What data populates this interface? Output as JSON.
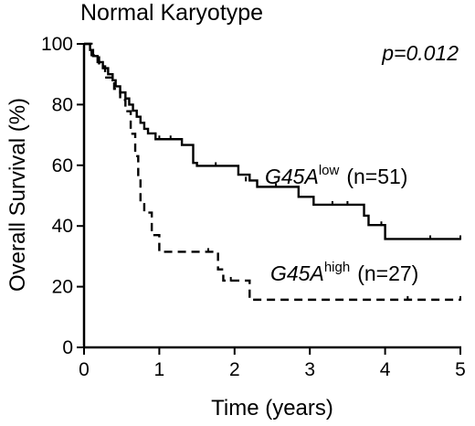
{
  "chart_data": {
    "type": "line",
    "title": "Normal Karyotype",
    "xlabel": "Time (years)",
    "ylabel": "Overall Survival (%)",
    "xlim": [
      0,
      5
    ],
    "ylim": [
      0,
      100
    ],
    "x_ticks": [
      "0",
      "1",
      "2",
      "3",
      "4",
      "5"
    ],
    "y_ticks": [
      "0",
      "20",
      "40",
      "60",
      "80",
      "100"
    ],
    "grid": false,
    "annotation": "p=0.012",
    "series": [
      {
        "gene": "G45A",
        "superscript": "low",
        "n_text": "(n=51)",
        "style": "solid",
        "color": "#000000",
        "points": [
          [
            0,
            100
          ],
          [
            0.08,
            98
          ],
          [
            0.12,
            96
          ],
          [
            0.18,
            94
          ],
          [
            0.25,
            92
          ],
          [
            0.32,
            90
          ],
          [
            0.38,
            88
          ],
          [
            0.42,
            86
          ],
          [
            0.48,
            84
          ],
          [
            0.55,
            82
          ],
          [
            0.6,
            80
          ],
          [
            0.65,
            78
          ],
          [
            0.7,
            76
          ],
          [
            0.75,
            74
          ],
          [
            0.8,
            72
          ],
          [
            0.85,
            70.5
          ],
          [
            0.95,
            68.6
          ],
          [
            1.2,
            68.6
          ],
          [
            1.3,
            66.7
          ],
          [
            1.45,
            60.8
          ],
          [
            1.5,
            59.8
          ],
          [
            1.9,
            59.8
          ],
          [
            2.05,
            56.9
          ],
          [
            2.2,
            55
          ],
          [
            2.3,
            52.9
          ],
          [
            2.7,
            52.9
          ],
          [
            2.85,
            49.6
          ],
          [
            3.05,
            47
          ],
          [
            3.65,
            47
          ],
          [
            3.72,
            43.4
          ],
          [
            3.78,
            40.3
          ],
          [
            3.95,
            40.3
          ],
          [
            4.0,
            35.7
          ],
          [
            4.15,
            35.7
          ],
          [
            5.0,
            35.7
          ]
        ],
        "censor_marks": [
          [
            1.0,
            68.6
          ],
          [
            1.15,
            68.6
          ],
          [
            1.75,
            59.8
          ],
          [
            2.15,
            55
          ],
          [
            2.55,
            52.9
          ],
          [
            3.3,
            47
          ],
          [
            3.5,
            47
          ],
          [
            3.95,
            40.3
          ],
          [
            4.6,
            35.7
          ],
          [
            5.0,
            35.7
          ]
        ]
      },
      {
        "gene": "G45A",
        "superscript": "high",
        "n_text": "(n=27)",
        "style": "dashed",
        "color": "#000000",
        "points": [
          [
            0,
            100
          ],
          [
            0.1,
            96.3
          ],
          [
            0.2,
            92.6
          ],
          [
            0.28,
            88.9
          ],
          [
            0.4,
            85.2
          ],
          [
            0.48,
            81.5
          ],
          [
            0.55,
            77.8
          ],
          [
            0.62,
            70.4
          ],
          [
            0.68,
            63
          ],
          [
            0.72,
            55.6
          ],
          [
            0.75,
            48.1
          ],
          [
            0.8,
            44.4
          ],
          [
            0.9,
            37
          ],
          [
            1.0,
            31.5
          ],
          [
            1.7,
            31.5
          ],
          [
            1.78,
            25.7
          ],
          [
            1.85,
            22
          ],
          [
            2.05,
            22
          ],
          [
            2.2,
            15.7
          ],
          [
            5.0,
            15.7
          ]
        ],
        "censor_marks": [
          [
            1.65,
            31.5
          ],
          [
            1.95,
            22
          ],
          [
            4.3,
            15.7
          ],
          [
            5.0,
            15.7
          ]
        ]
      }
    ]
  }
}
